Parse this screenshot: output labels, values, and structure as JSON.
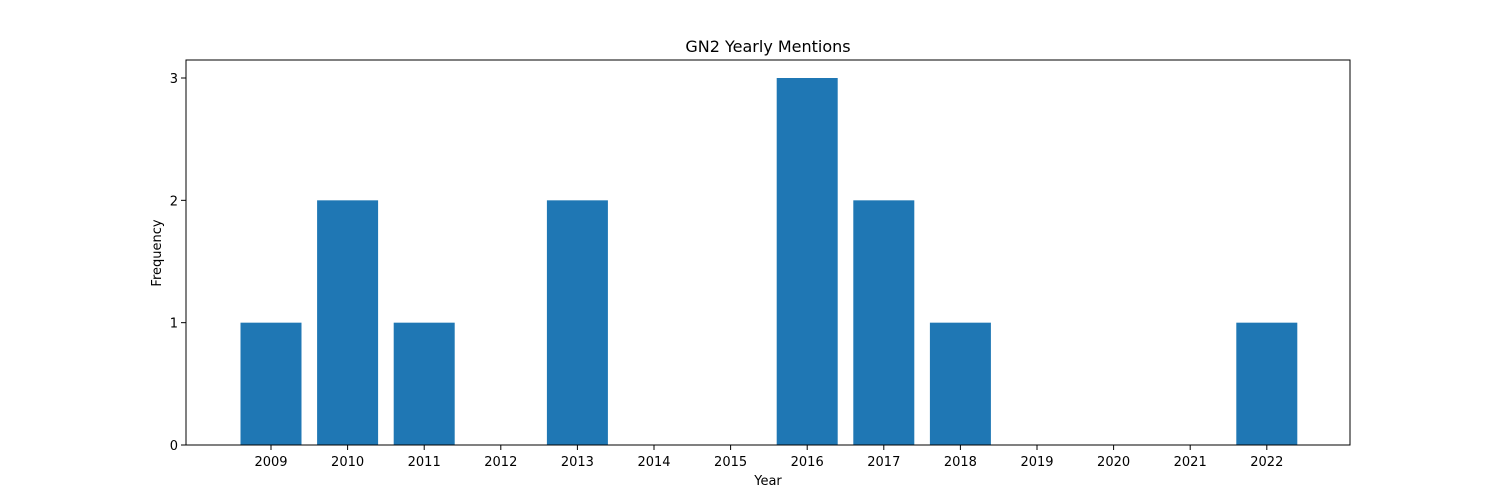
{
  "chart_data": {
    "type": "bar",
    "title": "GN2 Yearly Mentions",
    "xlabel": "Year",
    "ylabel": "Frequency",
    "categories": [
      "2009",
      "2010",
      "2011",
      "2012",
      "2013",
      "2014",
      "2015",
      "2016",
      "2017",
      "2018",
      "2019",
      "2020",
      "2021",
      "2022"
    ],
    "values": [
      1,
      2,
      1,
      0,
      2,
      0,
      0,
      3,
      2,
      1,
      0,
      0,
      0,
      1
    ],
    "ylim": [
      0,
      3
    ],
    "yticks": [
      "0",
      "1",
      "2",
      "3"
    ],
    "grid": false,
    "legend": "none",
    "bar_color": "#1f77b4"
  }
}
